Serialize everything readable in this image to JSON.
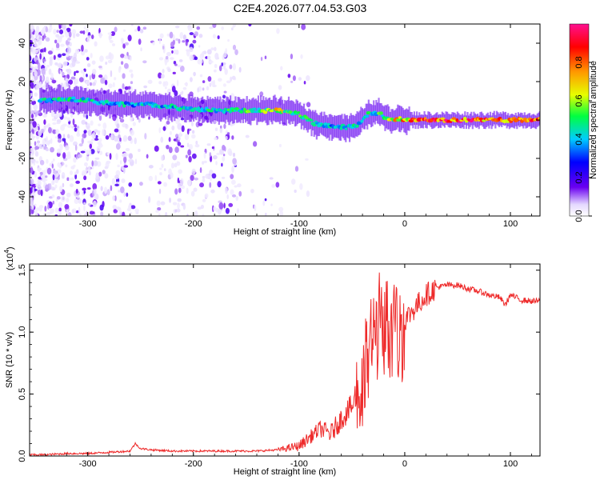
{
  "title": "C2E4.2026.077.04.53.G03",
  "colors": {
    "snr_line": "#ee2a2a",
    "spectrogram_low": "#e7ddff",
    "spectrogram_mid": "#5a00e6",
    "ridge": "#00e000",
    "peak": "#ff2020"
  },
  "chart_data": [
    {
      "type": "heatmap",
      "title": "",
      "xlabel": "Height of straight line (km)",
      "ylabel": "Frequency (Hz)",
      "xlim": [
        -355,
        128
      ],
      "ylim": [
        -50,
        50
      ],
      "x_ticks": [
        "-300",
        "-200",
        "-100",
        "0",
        "100"
      ],
      "y_ticks": [
        "-40",
        "-20",
        "0",
        "20",
        "40"
      ],
      "colorbar": {
        "label": "Normalized spectral amplitude",
        "range": [
          0.0,
          1.0
        ],
        "ticks": [
          "0.0",
          "0.2",
          "0.4",
          "0.6",
          "0.8"
        ],
        "colormap": "rainbow"
      },
      "ridge": {
        "x": [
          -345,
          -320,
          -300,
          -270,
          -240,
          -210,
          -180,
          -150,
          -120,
          -100,
          -85,
          -70,
          -55,
          -45,
          -35,
          -25,
          -15,
          -5,
          5,
          30,
          60,
          90,
          128
        ],
        "frequency": [
          10,
          11,
          10,
          8,
          8,
          6,
          5,
          5,
          5,
          3,
          -2,
          -3,
          -4,
          -3,
          3,
          4,
          0,
          1,
          0,
          0,
          0,
          0,
          0
        ],
        "amplitude": [
          0.45,
          0.5,
          0.5,
          0.45,
          0.45,
          0.45,
          0.5,
          0.55,
          0.7,
          0.55,
          0.45,
          0.45,
          0.5,
          0.45,
          0.5,
          0.55,
          0.7,
          0.75,
          0.85,
          0.95,
          0.95,
          0.9,
          0.9
        ]
      }
    },
    {
      "type": "line",
      "title": "",
      "xlabel": "Height of straight line (km)",
      "ylabel": "SNR (10 * v/v)",
      "y_multiplier": "(x10",
      "y_multiplier_exp": "4",
      "y_multiplier_close": ")",
      "xlim": [
        -355,
        128
      ],
      "ylim": [
        0,
        1.55
      ],
      "x_ticks": [
        "-300",
        "-200",
        "-100",
        "0",
        "100"
      ],
      "y_ticks": [
        "0.0",
        "0.5",
        "1.0",
        "1.5"
      ],
      "series": [
        {
          "x": [
            -355,
            -340,
            -320,
            -300,
            -280,
            -260,
            -255,
            -250,
            -240,
            -220,
            -200,
            -180,
            -160,
            -140,
            -120,
            -100,
            -90,
            -80,
            -70,
            -60,
            -50,
            -40,
            -35,
            -30,
            -25,
            -20,
            -15,
            -10,
            -5,
            0,
            10,
            20,
            30,
            40,
            50,
            60,
            70,
            80,
            90,
            95,
            100,
            110,
            120,
            128
          ],
          "y": [
            0.01,
            0.01,
            0.02,
            0.02,
            0.03,
            0.04,
            0.1,
            0.06,
            0.05,
            0.04,
            0.04,
            0.04,
            0.04,
            0.04,
            0.05,
            0.08,
            0.15,
            0.22,
            0.18,
            0.3,
            0.4,
            0.5,
            0.8,
            0.95,
            1.05,
            1.1,
            1.0,
            1.0,
            0.95,
            1.1,
            1.2,
            1.3,
            1.36,
            1.38,
            1.38,
            1.35,
            1.33,
            1.3,
            1.28,
            1.22,
            1.3,
            1.26,
            1.25,
            1.25
          ]
        }
      ]
    }
  ]
}
